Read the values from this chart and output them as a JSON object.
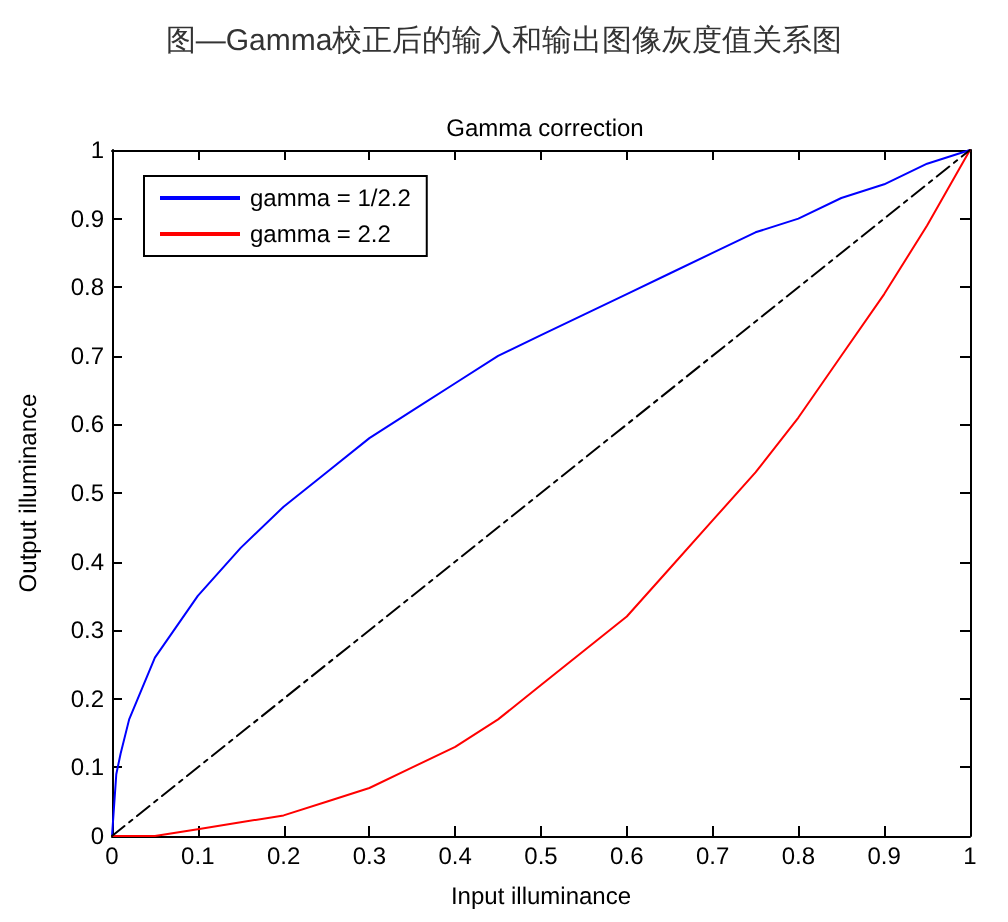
{
  "chart_data": {
    "type": "line",
    "title": "图—Gamma校正后的输入和输出图像灰度值关系图",
    "subtitle": "Gamma correction",
    "xlabel": "Input illuminance",
    "ylabel": "Output illuminance",
    "series": [
      {
        "name": "gamma = 1/2.2",
        "color": "#0000ff",
        "x": [
          0,
          0.005,
          0.01,
          0.02,
          0.05,
          0.1,
          0.15,
          0.2,
          0.25,
          0.3,
          0.35,
          0.4,
          0.45,
          0.5,
          0.55,
          0.6,
          0.65,
          0.7,
          0.75,
          0.8,
          0.85,
          0.9,
          0.95,
          1
        ],
        "values": [
          0,
          0.09,
          0.12,
          0.17,
          0.26,
          0.35,
          0.42,
          0.48,
          0.53,
          0.58,
          0.62,
          0.66,
          0.7,
          0.73,
          0.76,
          0.79,
          0.82,
          0.85,
          0.88,
          0.9,
          0.93,
          0.95,
          0.98,
          1
        ]
      },
      {
        "name": "gamma = 2.2",
        "color": "#ff0000",
        "x": [
          0,
          0.05,
          0.1,
          0.15,
          0.2,
          0.25,
          0.3,
          0.35,
          0.4,
          0.45,
          0.5,
          0.55,
          0.6,
          0.65,
          0.7,
          0.75,
          0.8,
          0.85,
          0.9,
          0.95,
          1
        ],
        "values": [
          0,
          0,
          0.01,
          0.02,
          0.03,
          0.05,
          0.07,
          0.1,
          0.13,
          0.17,
          0.22,
          0.27,
          0.32,
          0.39,
          0.46,
          0.53,
          0.61,
          0.7,
          0.79,
          0.89,
          1
        ]
      },
      {
        "color": "#000000",
        "line_style": "dashed",
        "x": [
          0,
          1
        ],
        "values": [
          0,
          1
        ]
      }
    ],
    "xlim": [
      0,
      1
    ],
    "xticks": [
      0,
      0.1,
      0.2,
      0.3,
      0.4,
      0.5,
      0.6,
      0.7,
      0.8,
      0.9,
      1
    ],
    "ylim": [
      0,
      1
    ],
    "yticks": [
      0,
      0.1,
      0.2,
      0.3,
      0.4,
      0.5,
      0.6,
      0.7,
      0.8,
      0.9,
      1
    ],
    "grid": false,
    "legend": "top left",
    "marker": "none",
    "line_style": "solid"
  }
}
